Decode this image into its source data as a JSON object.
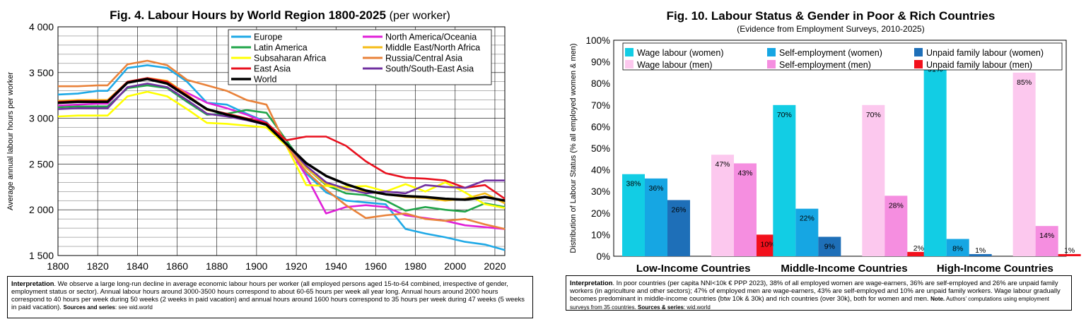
{
  "chart_data": [
    {
      "type": "line",
      "title": "Fig. 4. Labour Hours by World Region 1800-2025",
      "subtitle": "(per worker)",
      "xlabel": "",
      "ylabel": "Average annual labour hours per worker",
      "xlim": [
        1800,
        2025
      ],
      "ylim": [
        1500,
        4000
      ],
      "x_ticks": [
        "1800",
        "1820",
        "1840",
        "1860",
        "1880",
        "1900",
        "1920",
        "1940",
        "1960",
        "1980",
        "2000",
        "2020"
      ],
      "y_ticks": [
        "1 500",
        "2 000",
        "2 500",
        "3 000",
        "3 500",
        "4 000"
      ],
      "grid": true,
      "legend_position": "top-right",
      "series": [
        {
          "name": "Europe",
          "color": "#1FA9E6",
          "x": [
            1800,
            1810,
            1820,
            1825,
            1835,
            1845,
            1855,
            1865,
            1875,
            1885,
            1895,
            1905,
            1915,
            1925,
            1935,
            1945,
            1955,
            1965,
            1975,
            1985,
            1995,
            2005,
            2015,
            2025
          ],
          "y": [
            3260,
            3270,
            3300,
            3300,
            3550,
            3580,
            3550,
            3400,
            3170,
            3150,
            3050,
            2960,
            2700,
            2400,
            2190,
            2100,
            2080,
            2060,
            1790,
            1740,
            1700,
            1650,
            1620,
            1560
          ]
        },
        {
          "name": "North America/Oceania",
          "color": "#E020D8",
          "x": [
            1800,
            1810,
            1820,
            1825,
            1835,
            1845,
            1855,
            1865,
            1875,
            1885,
            1895,
            1905,
            1915,
            1925,
            1935,
            1945,
            1955,
            1965,
            1975,
            1985,
            1995,
            2005,
            2015,
            2025
          ],
          "y": [
            3140,
            3150,
            3160,
            3160,
            3390,
            3440,
            3390,
            3280,
            3170,
            3110,
            3040,
            2950,
            2720,
            2370,
            1960,
            2030,
            2050,
            2030,
            1940,
            1910,
            1880,
            1830,
            1810,
            1790
          ]
        },
        {
          "name": "Latin America",
          "color": "#21A54A",
          "x": [
            1800,
            1810,
            1820,
            1825,
            1835,
            1845,
            1855,
            1865,
            1875,
            1885,
            1895,
            1905,
            1915,
            1925,
            1935,
            1945,
            1955,
            1965,
            1975,
            1985,
            1995,
            2005,
            2015,
            2025
          ],
          "y": [
            3120,
            3130,
            3130,
            3130,
            3330,
            3360,
            3330,
            3180,
            3040,
            3050,
            3090,
            3060,
            2760,
            2460,
            2270,
            2180,
            2160,
            2100,
            1990,
            2030,
            2000,
            1980,
            2070,
            2030
          ]
        },
        {
          "name": "Middle East/North Africa",
          "color": "#F6BC16",
          "x": [
            1800,
            1810,
            1820,
            1825,
            1835,
            1845,
            1855,
            1865,
            1875,
            1885,
            1895,
            1905,
            1915,
            1925,
            1935,
            1945,
            1955,
            1965,
            1975,
            1985,
            1995,
            2005,
            2015,
            2025
          ],
          "y": [
            3190,
            3200,
            3200,
            3200,
            3400,
            3440,
            3410,
            3260,
            3090,
            3050,
            3000,
            2940,
            2720,
            2460,
            2280,
            2220,
            2200,
            2170,
            2140,
            2130,
            2100,
            2120,
            2180,
            2070
          ]
        },
        {
          "name": "Subsaharan Africa",
          "color": "#FFFF00",
          "x": [
            1800,
            1810,
            1820,
            1825,
            1835,
            1845,
            1855,
            1865,
            1875,
            1885,
            1895,
            1905,
            1915,
            1925,
            1935,
            1945,
            1955,
            1965,
            1975,
            1985,
            1995,
            2005,
            2015,
            2025
          ],
          "y": [
            3020,
            3030,
            3030,
            3030,
            3240,
            3290,
            3240,
            3100,
            2950,
            2940,
            2920,
            2900,
            2700,
            2270,
            2260,
            2250,
            2260,
            2200,
            2280,
            2200,
            2300,
            2190,
            2060,
            2020
          ]
        },
        {
          "name": "Russia/Central Asia",
          "color": "#E9823A",
          "x": [
            1800,
            1810,
            1820,
            1825,
            1835,
            1845,
            1855,
            1865,
            1875,
            1885,
            1895,
            1905,
            1915,
            1925,
            1935,
            1945,
            1955,
            1965,
            1975,
            1985,
            1995,
            2005,
            2015,
            2025
          ],
          "y": [
            3350,
            3350,
            3360,
            3360,
            3590,
            3630,
            3580,
            3420,
            3360,
            3300,
            3200,
            3150,
            2700,
            2420,
            2220,
            2050,
            1910,
            1940,
            1960,
            1900,
            1880,
            1900,
            1840,
            1790
          ]
        },
        {
          "name": "East Asia",
          "color": "#E8101E",
          "x": [
            1800,
            1810,
            1820,
            1825,
            1835,
            1845,
            1855,
            1865,
            1875,
            1885,
            1895,
            1905,
            1915,
            1925,
            1935,
            1945,
            1955,
            1965,
            1975,
            1985,
            1995,
            2005,
            2015,
            2025
          ],
          "y": [
            3180,
            3190,
            3190,
            3190,
            3400,
            3440,
            3400,
            3250,
            3100,
            3050,
            3000,
            2950,
            2760,
            2800,
            2800,
            2700,
            2530,
            2400,
            2350,
            2340,
            2320,
            2240,
            2270,
            2120
          ]
        },
        {
          "name": "South/South-East Asia",
          "color": "#7030A0",
          "x": [
            1800,
            1810,
            1820,
            1825,
            1835,
            1845,
            1855,
            1865,
            1875,
            1885,
            1895,
            1905,
            1915,
            1925,
            1935,
            1945,
            1955,
            1965,
            1975,
            1985,
            1995,
            2005,
            2015,
            2025
          ],
          "y": [
            3100,
            3110,
            3110,
            3110,
            3340,
            3380,
            3340,
            3200,
            3050,
            3020,
            2980,
            2930,
            2720,
            2480,
            2300,
            2230,
            2180,
            2200,
            2180,
            2270,
            2250,
            2240,
            2320,
            2320
          ]
        },
        {
          "name": "World",
          "color": "#000000",
          "x": [
            1800,
            1810,
            1820,
            1825,
            1835,
            1845,
            1855,
            1865,
            1875,
            1885,
            1895,
            1905,
            1915,
            1925,
            1935,
            1945,
            1955,
            1965,
            1975,
            1985,
            1995,
            2005,
            2015,
            2025
          ],
          "y": [
            3170,
            3180,
            3180,
            3180,
            3390,
            3430,
            3380,
            3240,
            3100,
            3040,
            2990,
            2930,
            2720,
            2510,
            2370,
            2280,
            2210,
            2170,
            2150,
            2140,
            2120,
            2110,
            2140,
            2100
          ]
        }
      ],
      "note": {
        "label": "Interpretation",
        "text": ". We observe a large long-run decline in average economic labour hours per worker (all employed persons aged 15-to-64 combined, irrespective of gender, employment status or sector). Annual labour hours around 3000-3500 hours correspond to about 60-65 hours per week all year long. Annual hours around 2000 hours correspond to 40 hours per week during 50 weeks (2 weeks in paid vacation) and annual hours around 1600 hours correspond to 35 hours per week during 47 weeks (5 weeks in paid vacation).",
        "source_label": "Sources and series",
        "source_text": ": see wid.world"
      }
    },
    {
      "type": "bar",
      "title": "Fig. 10. Labour Status & Gender in Poor & Rich Countries",
      "subtitle": "(Evidence from Employment Surveys, 2010-2025)",
      "xlabel": "",
      "ylabel": "Distribution of Labour Status (% all employed women & men)",
      "ylim": [
        0,
        100
      ],
      "y_ticks": [
        "0%",
        "10%",
        "20%",
        "30%",
        "40%",
        "50%",
        "60%",
        "70%",
        "80%",
        "90%",
        "100%"
      ],
      "categories": [
        "Low-Income Countries",
        "Middle-Income Countries",
        "High-Income Countries"
      ],
      "legend_position": "top",
      "series": [
        {
          "name": "Wage labour (women)",
          "color": "#12CDE4",
          "values": [
            38,
            70,
            91
          ],
          "labels": [
            "38%",
            "70%",
            "91%"
          ]
        },
        {
          "name": "Self-employment (women)",
          "color": "#16A6E3",
          "values": [
            36,
            22,
            8
          ],
          "labels": [
            "36%",
            "22%",
            "8%"
          ]
        },
        {
          "name": "Unpaid family labour (women)",
          "color": "#1E6FB8",
          "values": [
            26,
            9,
            1
          ],
          "labels": [
            "26%",
            "9%",
            "1%"
          ]
        },
        {
          "name": "Wage labour (men)",
          "color": "#FCC8EE",
          "values": [
            47,
            70,
            85
          ],
          "labels": [
            "47%",
            "70%",
            "85%"
          ]
        },
        {
          "name": "Self-employment (men)",
          "color": "#F58EE0",
          "values": [
            43,
            28,
            14
          ],
          "labels": [
            "43%",
            "28%",
            "14%"
          ]
        },
        {
          "name": "Unpaid family labour (men)",
          "color": "#F2101C",
          "values": [
            10,
            2,
            1
          ],
          "labels": [
            "10%",
            "2%",
            "1%"
          ]
        }
      ],
      "note": {
        "label": "Interpretation",
        "text": ". In poor countries (per capita NNI<10k € PPP 2023), 38% of all employed women are wage-earners, 36% are self-employed and 26% are unpaid family workers (in agriculture and other sectors); 47% of employed men are wage-earners, 43% are self-employed and 10% are unpaid family workers. Wage labour gradually becomes predominant in middle-income countries (btw 10k & 30k) and rich countries (over 30k), both for women and men.",
        "note_label": "Note.",
        "note_text": " Authors' computations using employment surveys from 35 countries.",
        "source_label": "Sources & series",
        "source_text": ": wid.world"
      }
    }
  ]
}
